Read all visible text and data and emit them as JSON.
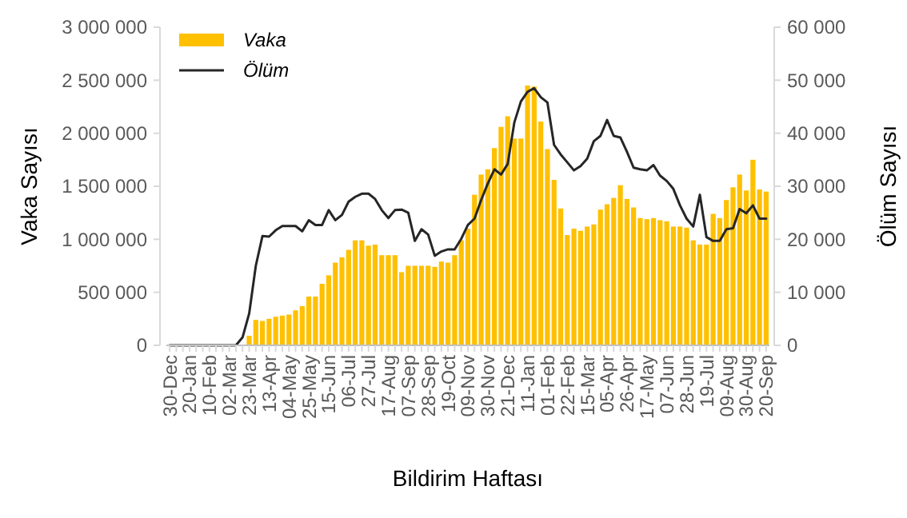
{
  "chart_data": {
    "type": "bar",
    "xlabel": "Bildirim Haftası",
    "ylabel": "Vaka Sayısı",
    "y2label": "Ölüm Sayısı",
    "categories": [
      "30-Dec",
      null,
      null,
      "20-Jan",
      null,
      null,
      "10-Feb",
      null,
      null,
      "02-Mar",
      null,
      null,
      "23-Mar",
      null,
      null,
      "13-Apr",
      null,
      null,
      "04-May",
      null,
      null,
      "25-May",
      null,
      null,
      "15-Jun",
      null,
      null,
      "06-Jul",
      null,
      null,
      "27-Jul",
      null,
      null,
      "17-Aug",
      null,
      null,
      "07-Sep",
      null,
      null,
      "28-Sep",
      null,
      null,
      "19-Oct",
      null,
      null,
      "09-Nov",
      null,
      null,
      "30-Nov",
      null,
      null,
      "21-Dec",
      null,
      null,
      "11-Jan",
      null,
      null,
      "01-Feb",
      null,
      null,
      "22-Feb",
      null,
      null,
      "15-Mar",
      null,
      null,
      "05-Apr",
      null,
      null,
      "26-Apr",
      null,
      null,
      "17-May",
      null,
      null,
      "07-Jun",
      null,
      null,
      "28-Jun",
      null,
      null,
      "19-Jul",
      null,
      null,
      "09-Aug",
      null,
      null,
      "30-Aug",
      null,
      null,
      "20-Sep"
    ],
    "series": [
      {
        "name": "Vaka",
        "color": "#ffc000",
        "values": [
          0,
          0,
          0,
          0,
          0,
          0,
          0,
          0,
          0,
          0,
          0,
          0,
          90000,
          240000,
          230000,
          250000,
          270000,
          280000,
          290000,
          330000,
          370000,
          460000,
          460000,
          580000,
          660000,
          780000,
          830000,
          900000,
          990000,
          990000,
          940000,
          950000,
          850000,
          850000,
          850000,
          690000,
          750000,
          750000,
          750000,
          750000,
          740000,
          790000,
          780000,
          850000,
          990000,
          1100000,
          1420000,
          1610000,
          1660000,
          1860000,
          2060000,
          2160000,
          1950000,
          1950000,
          2450000,
          2440000,
          2110000,
          1850000,
          1560000,
          1290000,
          1040000,
          1100000,
          1080000,
          1120000,
          1140000,
          1280000,
          1330000,
          1390000,
          1510000,
          1380000,
          1300000,
          1200000,
          1190000,
          1200000,
          1180000,
          1170000,
          1120000,
          1120000,
          1110000,
          990000,
          950000,
          950000,
          1240000,
          1200000,
          1370000,
          1490000,
          1610000,
          1460000,
          1750000,
          1470000,
          1450000
        ]
      },
      {
        "name": "Ölüm",
        "type": "line",
        "axis": "y2",
        "color": "#262626",
        "values": [
          0,
          0,
          0,
          0,
          0,
          0,
          0,
          0,
          0,
          0,
          0,
          1500,
          6000,
          15000,
          20600,
          20500,
          21700,
          22500,
          22500,
          22500,
          21500,
          23600,
          22700,
          22700,
          25500,
          23600,
          24600,
          27100,
          28000,
          28600,
          28600,
          27600,
          25500,
          24000,
          25500,
          25600,
          25000,
          19700,
          21900,
          20900,
          16900,
          17700,
          18100,
          18100,
          20100,
          22700,
          23900,
          27400,
          30500,
          33200,
          32200,
          34200,
          42000,
          46000,
          47800,
          48500,
          46800,
          45800,
          37800,
          36000,
          34500,
          33000,
          33800,
          35200,
          38500,
          39500,
          42500,
          39500,
          39200,
          36500,
          33500,
          33200,
          33000,
          34000,
          32000,
          31000,
          29500,
          26400,
          23900,
          22400,
          28400,
          20400,
          19700,
          19700,
          21900,
          22100,
          25700,
          24900,
          26400,
          23900,
          23900
        ]
      }
    ],
    "ylim": [
      0,
      3000000
    ],
    "yticks": [
      0,
      {
        "value": 500000,
        "label": "500 000"
      },
      {
        "value": 1000000,
        "label": "1 000 000"
      },
      {
        "value": 1500000,
        "label": "1 500 000"
      },
      {
        "value": 2000000,
        "label": "2 000 000"
      },
      {
        "value": 2500000,
        "label": "2 500 000"
      },
      {
        "value": 3000000,
        "label": "3 000 000"
      }
    ],
    "y2lim": [
      0,
      60000
    ],
    "y2ticks": [
      0,
      {
        "value": 10000,
        "label": "10 000"
      },
      {
        "value": 20000,
        "label": "20 000"
      },
      {
        "value": 30000,
        "label": "30 000"
      },
      {
        "value": 40000,
        "label": "40 000"
      },
      {
        "value": 50000,
        "label": "50 000"
      },
      {
        "value": 60000,
        "label": "60 000"
      }
    ],
    "legend": "top left"
  }
}
